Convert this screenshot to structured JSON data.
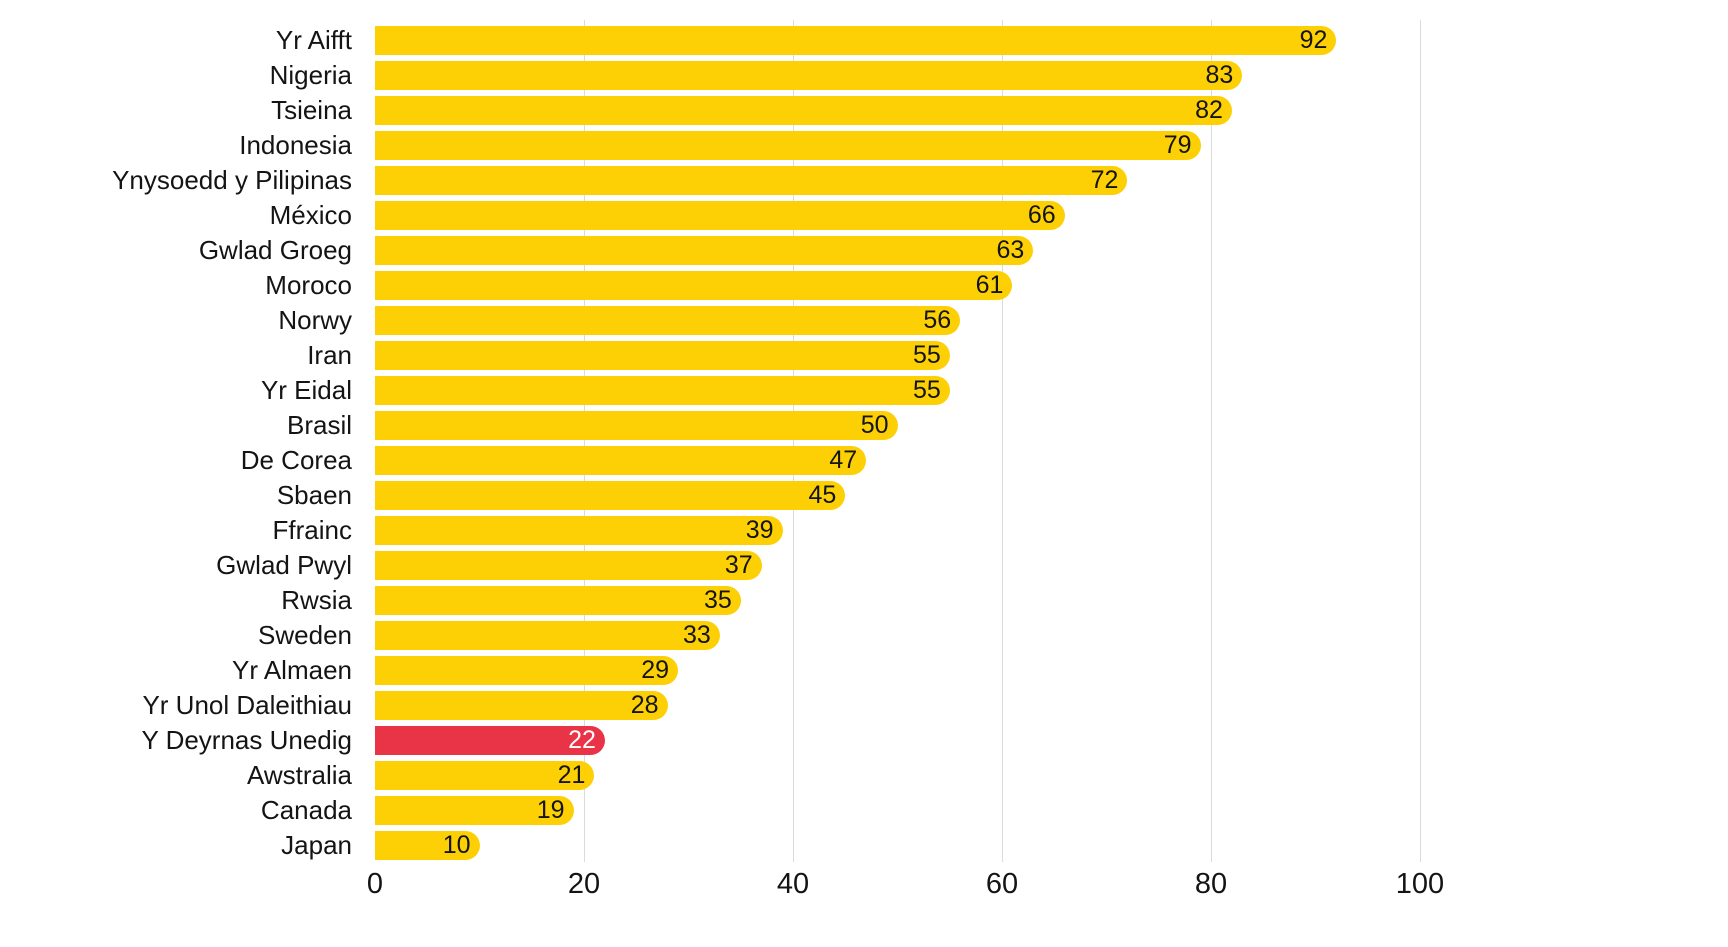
{
  "chart_data": {
    "type": "bar",
    "orientation": "horizontal",
    "title": "",
    "xlabel": "",
    "ylabel": "",
    "categories": [
      "Yr Aifft",
      "Nigeria",
      "Tsieina",
      "Indonesia",
      "Ynysoedd y Pilipinas",
      "México",
      "Gwlad Groeg",
      "Moroco",
      "Norwy",
      "Iran",
      "Yr Eidal",
      "Brasil",
      "De Corea",
      "Sbaen",
      "Ffrainc",
      "Gwlad Pwyl",
      "Rwsia",
      "Sweden",
      "Yr Almaen",
      "Yr Unol Daleithiau",
      "Y Deyrnas Unedig",
      "Awstralia",
      "Canada",
      "Japan"
    ],
    "values": [
      92,
      83,
      82,
      79,
      72,
      66,
      63,
      61,
      56,
      55,
      55,
      50,
      47,
      45,
      39,
      37,
      35,
      33,
      29,
      28,
      22,
      21,
      19,
      10
    ],
    "highlight_index": 20,
    "highlight_category": "Y Deyrnas Unedig",
    "x_ticks": [
      0,
      20,
      40,
      60,
      80,
      100
    ],
    "x_tick_labels": [
      "0",
      "20",
      "40",
      "60",
      "80",
      "100"
    ],
    "xlim": [
      0,
      129
    ],
    "grid": "vertical-only",
    "legend": "none",
    "colors": {
      "bar": "#fdd005",
      "highlight_bar": "#e93448",
      "value_label": "#141414",
      "highlight_value_label": "#ffffff",
      "gridline": "#dbdbdb",
      "text": "#141414"
    }
  }
}
